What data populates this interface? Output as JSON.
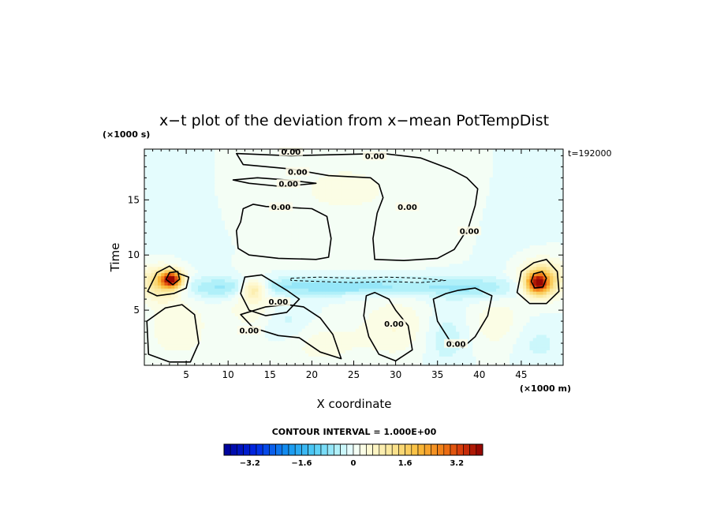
{
  "chart_data": {
    "type": "heatmap",
    "title": "x−t plot of the deviation from x−mean PotTempDist",
    "xlabel": "X coordinate",
    "ylabel": "Time",
    "x_units": "(×1000 m)",
    "y_units": "(×1000 s)",
    "time_stamp": "t=192000",
    "xlim": [
      0,
      50
    ],
    "ylim": [
      0,
      19.6
    ],
    "x_ticks": [
      5,
      10,
      15,
      20,
      25,
      30,
      35,
      40,
      45
    ],
    "x_tick_labels": [
      "5",
      "10",
      "15",
      "20",
      "25",
      "30",
      "35",
      "40",
      "45"
    ],
    "y_ticks": [
      5,
      10,
      15
    ],
    "y_tick_labels": [
      "5",
      "10",
      "15"
    ],
    "contour_interval_label": "CONTOUR INTERVAL = 1.000E+00",
    "contour_labels": [
      {
        "x": 17.5,
        "y": 19.2,
        "text": "0.00"
      },
      {
        "x": 27.5,
        "y": 18.8,
        "text": "0.00"
      },
      {
        "x": 18.3,
        "y": 17.4,
        "text": "0.00"
      },
      {
        "x": 17.2,
        "y": 16.3,
        "text": "0.00"
      },
      {
        "x": 16.3,
        "y": 14.2,
        "text": "0.00"
      },
      {
        "x": 31.4,
        "y": 14.2,
        "text": "0.00"
      },
      {
        "x": 38.8,
        "y": 12.0,
        "text": "0.00"
      },
      {
        "x": 16.0,
        "y": 5.6,
        "text": "0.00"
      },
      {
        "x": 12.5,
        "y": 3.0,
        "text": "0.00"
      },
      {
        "x": 29.8,
        "y": 3.6,
        "text": "0.00"
      },
      {
        "x": 37.2,
        "y": 1.8,
        "text": "0.00"
      }
    ],
    "colorbar": {
      "min": -4,
      "max": 4,
      "step": 0.2,
      "tick_values": [
        -3.2,
        -1.6,
        0,
        1.6,
        3.2
      ],
      "tick_labels": [
        "−3.2",
        "−1.6",
        "0",
        "1.6",
        "3.2"
      ]
    },
    "features": [
      {
        "name": "warm anomaly west edge",
        "x": 3.2,
        "y": 7.8,
        "peak": 3.4
      },
      {
        "name": "warm anomaly east edge",
        "x": 47.0,
        "y": 7.5,
        "peak": 3.0
      },
      {
        "name": "cool band",
        "x": 25.0,
        "y": 7.2,
        "peak": -0.9
      }
    ]
  }
}
